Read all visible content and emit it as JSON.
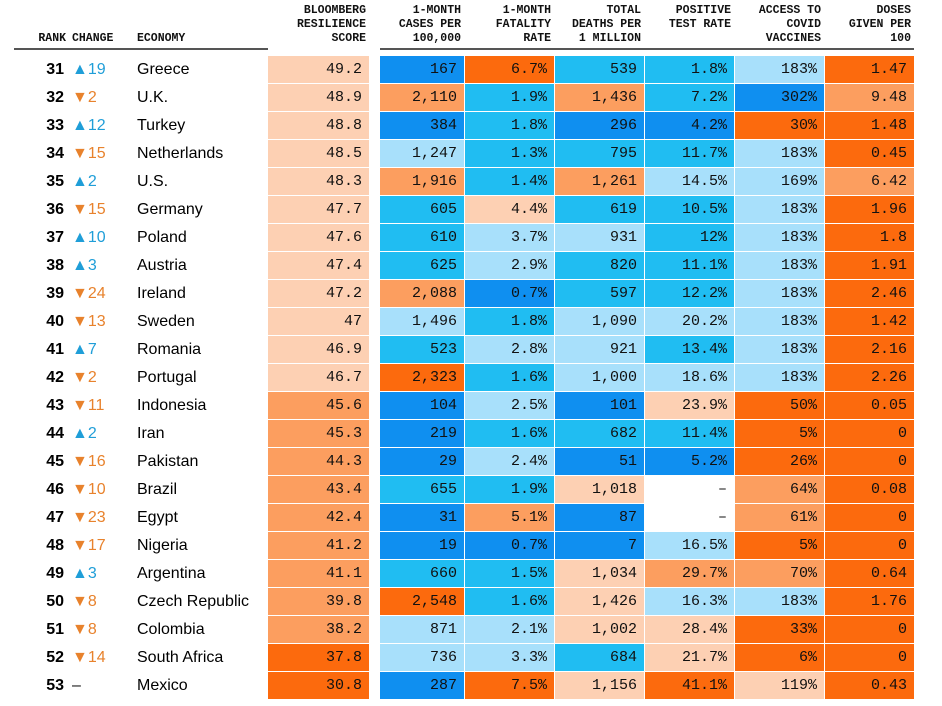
{
  "palette": {
    "o1": "#fdd0b3",
    "o2": "#fc9e5f",
    "o3": "#fc6a0d",
    "b1": "#a8e0fb",
    "b2": "#20bdf2",
    "b3": "#0f8ff0",
    "blank": "#ffffff"
  },
  "table": {
    "columns": [
      {
        "key": "rank",
        "label": "RANK"
      },
      {
        "key": "change",
        "label": "CHANGE"
      },
      {
        "key": "economy",
        "label": "ECONOMY"
      },
      {
        "key": "score",
        "label": "BLOOMBERG\nRESILIENCE\nSCORE"
      },
      {
        "key": "cases",
        "label": "1-MONTH\nCASES PER\n100,000"
      },
      {
        "key": "fatality",
        "label": "1-MONTH\nFATALITY\nRATE"
      },
      {
        "key": "deaths",
        "label": "TOTAL\nDEATHS PER\n1 MILLION"
      },
      {
        "key": "positive",
        "label": "POSITIVE\nTEST RATE"
      },
      {
        "key": "access",
        "label": "ACCESS TO\nCOVID\nVACCINES"
      },
      {
        "key": "doses",
        "label": "DOSES\nGIVEN PER\n100"
      }
    ],
    "rows": [
      {
        "rank": "31",
        "change": "▲19",
        "dir": "up",
        "economy": "Greece",
        "cells": [
          {
            "v": "49.2",
            "c": "o1"
          },
          {
            "v": "167",
            "c": "b3"
          },
          {
            "v": "6.7%",
            "c": "o3"
          },
          {
            "v": "539",
            "c": "b2"
          },
          {
            "v": "1.8%",
            "c": "b2"
          },
          {
            "v": "183%",
            "c": "b1"
          },
          {
            "v": "1.47",
            "c": "o3"
          }
        ]
      },
      {
        "rank": "32",
        "change": "▼2",
        "dir": "down",
        "economy": "U.K.",
        "cells": [
          {
            "v": "48.9",
            "c": "o1"
          },
          {
            "v": "2,110",
            "c": "o2"
          },
          {
            "v": "1.9%",
            "c": "b2"
          },
          {
            "v": "1,436",
            "c": "o2"
          },
          {
            "v": "7.2%",
            "c": "b2"
          },
          {
            "v": "302%",
            "c": "b3"
          },
          {
            "v": "9.48",
            "c": "o2"
          }
        ]
      },
      {
        "rank": "33",
        "change": "▲12",
        "dir": "up",
        "economy": "Turkey",
        "cells": [
          {
            "v": "48.8",
            "c": "o1"
          },
          {
            "v": "384",
            "c": "b3"
          },
          {
            "v": "1.8%",
            "c": "b2"
          },
          {
            "v": "296",
            "c": "b3"
          },
          {
            "v": "4.2%",
            "c": "b3"
          },
          {
            "v": "30%",
            "c": "o3"
          },
          {
            "v": "1.48",
            "c": "o3"
          }
        ]
      },
      {
        "rank": "34",
        "change": "▼15",
        "dir": "down",
        "economy": "Netherlands",
        "cells": [
          {
            "v": "48.5",
            "c": "o1"
          },
          {
            "v": "1,247",
            "c": "b1"
          },
          {
            "v": "1.3%",
            "c": "b2"
          },
          {
            "v": "795",
            "c": "b2"
          },
          {
            "v": "11.7%",
            "c": "b2"
          },
          {
            "v": "183%",
            "c": "b1"
          },
          {
            "v": "0.45",
            "c": "o3"
          }
        ]
      },
      {
        "rank": "35",
        "change": "▲2",
        "dir": "up",
        "economy": "U.S.",
        "cells": [
          {
            "v": "48.3",
            "c": "o1"
          },
          {
            "v": "1,916",
            "c": "o2"
          },
          {
            "v": "1.4%",
            "c": "b2"
          },
          {
            "v": "1,261",
            "c": "o2"
          },
          {
            "v": "14.5%",
            "c": "b1"
          },
          {
            "v": "169%",
            "c": "b1"
          },
          {
            "v": "6.42",
            "c": "o2"
          }
        ]
      },
      {
        "rank": "36",
        "change": "▼15",
        "dir": "down",
        "economy": "Germany",
        "cells": [
          {
            "v": "47.7",
            "c": "o1"
          },
          {
            "v": "605",
            "c": "b2"
          },
          {
            "v": "4.4%",
            "c": "o1"
          },
          {
            "v": "619",
            "c": "b2"
          },
          {
            "v": "10.5%",
            "c": "b2"
          },
          {
            "v": "183%",
            "c": "b1"
          },
          {
            "v": "1.96",
            "c": "o3"
          }
        ]
      },
      {
        "rank": "37",
        "change": "▲10",
        "dir": "up",
        "economy": "Poland",
        "cells": [
          {
            "v": "47.6",
            "c": "o1"
          },
          {
            "v": "610",
            "c": "b2"
          },
          {
            "v": "3.7%",
            "c": "b1"
          },
          {
            "v": "931",
            "c": "b1"
          },
          {
            "v": "12%",
            "c": "b2"
          },
          {
            "v": "183%",
            "c": "b1"
          },
          {
            "v": "1.8",
            "c": "o3"
          }
        ]
      },
      {
        "rank": "38",
        "change": "▲3",
        "dir": "up",
        "economy": "Austria",
        "cells": [
          {
            "v": "47.4",
            "c": "o1"
          },
          {
            "v": "625",
            "c": "b2"
          },
          {
            "v": "2.9%",
            "c": "b1"
          },
          {
            "v": "820",
            "c": "b2"
          },
          {
            "v": "11.1%",
            "c": "b2"
          },
          {
            "v": "183%",
            "c": "b1"
          },
          {
            "v": "1.91",
            "c": "o3"
          }
        ]
      },
      {
        "rank": "39",
        "change": "▼24",
        "dir": "down",
        "economy": "Ireland",
        "cells": [
          {
            "v": "47.2",
            "c": "o1"
          },
          {
            "v": "2,088",
            "c": "o2"
          },
          {
            "v": "0.7%",
            "c": "b3"
          },
          {
            "v": "597",
            "c": "b2"
          },
          {
            "v": "12.2%",
            "c": "b2"
          },
          {
            "v": "183%",
            "c": "b1"
          },
          {
            "v": "2.46",
            "c": "o3"
          }
        ]
      },
      {
        "rank": "40",
        "change": "▼13",
        "dir": "down",
        "economy": "Sweden",
        "cells": [
          {
            "v": "47",
            "c": "o1"
          },
          {
            "v": "1,496",
            "c": "b1"
          },
          {
            "v": "1.8%",
            "c": "b2"
          },
          {
            "v": "1,090",
            "c": "b1"
          },
          {
            "v": "20.2%",
            "c": "b1"
          },
          {
            "v": "183%",
            "c": "b1"
          },
          {
            "v": "1.42",
            "c": "o3"
          }
        ]
      },
      {
        "rank": "41",
        "change": "▲7",
        "dir": "up",
        "economy": "Romania",
        "cells": [
          {
            "v": "46.9",
            "c": "o1"
          },
          {
            "v": "523",
            "c": "b2"
          },
          {
            "v": "2.8%",
            "c": "b1"
          },
          {
            "v": "921",
            "c": "b1"
          },
          {
            "v": "13.4%",
            "c": "b2"
          },
          {
            "v": "183%",
            "c": "b1"
          },
          {
            "v": "2.16",
            "c": "o3"
          }
        ]
      },
      {
        "rank": "42",
        "change": "▼2",
        "dir": "down",
        "economy": "Portugal",
        "cells": [
          {
            "v": "46.7",
            "c": "o1"
          },
          {
            "v": "2,323",
            "c": "o3"
          },
          {
            "v": "1.6%",
            "c": "b2"
          },
          {
            "v": "1,000",
            "c": "b1"
          },
          {
            "v": "18.6%",
            "c": "b1"
          },
          {
            "v": "183%",
            "c": "b1"
          },
          {
            "v": "2.26",
            "c": "o3"
          }
        ]
      },
      {
        "rank": "43",
        "change": "▼11",
        "dir": "down",
        "economy": "Indonesia",
        "cells": [
          {
            "v": "45.6",
            "c": "o2"
          },
          {
            "v": "104",
            "c": "b3"
          },
          {
            "v": "2.5%",
            "c": "b1"
          },
          {
            "v": "101",
            "c": "b3"
          },
          {
            "v": "23.9%",
            "c": "o1"
          },
          {
            "v": "50%",
            "c": "o3"
          },
          {
            "v": "0.05",
            "c": "o3"
          }
        ]
      },
      {
        "rank": "44",
        "change": "▲2",
        "dir": "up",
        "economy": "Iran",
        "cells": [
          {
            "v": "45.3",
            "c": "o2"
          },
          {
            "v": "219",
            "c": "b3"
          },
          {
            "v": "1.6%",
            "c": "b2"
          },
          {
            "v": "682",
            "c": "b2"
          },
          {
            "v": "11.4%",
            "c": "b2"
          },
          {
            "v": "5%",
            "c": "o3"
          },
          {
            "v": "0",
            "c": "o3"
          }
        ]
      },
      {
        "rank": "45",
        "change": "▼16",
        "dir": "down",
        "economy": "Pakistan",
        "cells": [
          {
            "v": "44.3",
            "c": "o2"
          },
          {
            "v": "29",
            "c": "b3"
          },
          {
            "v": "2.4%",
            "c": "b1"
          },
          {
            "v": "51",
            "c": "b3"
          },
          {
            "v": "5.2%",
            "c": "b3"
          },
          {
            "v": "26%",
            "c": "o3"
          },
          {
            "v": "0",
            "c": "o3"
          }
        ]
      },
      {
        "rank": "46",
        "change": "▼10",
        "dir": "down",
        "economy": "Brazil",
        "cells": [
          {
            "v": "43.4",
            "c": "o2"
          },
          {
            "v": "655",
            "c": "b2"
          },
          {
            "v": "1.9%",
            "c": "b2"
          },
          {
            "v": "1,018",
            "c": "o1"
          },
          {
            "v": "–",
            "c": "blank"
          },
          {
            "v": "64%",
            "c": "o2"
          },
          {
            "v": "0.08",
            "c": "o3"
          }
        ]
      },
      {
        "rank": "47",
        "change": "▼23",
        "dir": "down",
        "economy": "Egypt",
        "cells": [
          {
            "v": "42.4",
            "c": "o2"
          },
          {
            "v": "31",
            "c": "b3"
          },
          {
            "v": "5.1%",
            "c": "o2"
          },
          {
            "v": "87",
            "c": "b3"
          },
          {
            "v": "–",
            "c": "blank"
          },
          {
            "v": "61%",
            "c": "o2"
          },
          {
            "v": "0",
            "c": "o3"
          }
        ]
      },
      {
        "rank": "48",
        "change": "▼17",
        "dir": "down",
        "economy": "Nigeria",
        "cells": [
          {
            "v": "41.2",
            "c": "o2"
          },
          {
            "v": "19",
            "c": "b3"
          },
          {
            "v": "0.7%",
            "c": "b3"
          },
          {
            "v": "7",
            "c": "b3"
          },
          {
            "v": "16.5%",
            "c": "b1"
          },
          {
            "v": "5%",
            "c": "o3"
          },
          {
            "v": "0",
            "c": "o3"
          }
        ]
      },
      {
        "rank": "49",
        "change": "▲3",
        "dir": "up",
        "economy": "Argentina",
        "cells": [
          {
            "v": "41.1",
            "c": "o2"
          },
          {
            "v": "660",
            "c": "b2"
          },
          {
            "v": "1.5%",
            "c": "b2"
          },
          {
            "v": "1,034",
            "c": "o1"
          },
          {
            "v": "29.7%",
            "c": "o2"
          },
          {
            "v": "70%",
            "c": "o2"
          },
          {
            "v": "0.64",
            "c": "o3"
          }
        ]
      },
      {
        "rank": "50",
        "change": "▼8",
        "dir": "down",
        "economy": "Czech Republic",
        "cells": [
          {
            "v": "39.8",
            "c": "o2"
          },
          {
            "v": "2,548",
            "c": "o3"
          },
          {
            "v": "1.6%",
            "c": "b2"
          },
          {
            "v": "1,426",
            "c": "o1"
          },
          {
            "v": "16.3%",
            "c": "b1"
          },
          {
            "v": "183%",
            "c": "b1"
          },
          {
            "v": "1.76",
            "c": "o3"
          }
        ]
      },
      {
        "rank": "51",
        "change": "▼8",
        "dir": "down",
        "economy": "Colombia",
        "cells": [
          {
            "v": "38.2",
            "c": "o2"
          },
          {
            "v": "871",
            "c": "b1"
          },
          {
            "v": "2.1%",
            "c": "b1"
          },
          {
            "v": "1,002",
            "c": "o1"
          },
          {
            "v": "28.4%",
            "c": "o1"
          },
          {
            "v": "33%",
            "c": "o3"
          },
          {
            "v": "0",
            "c": "o3"
          }
        ]
      },
      {
        "rank": "52",
        "change": "▼14",
        "dir": "down",
        "economy": "South Africa",
        "cells": [
          {
            "v": "37.8",
            "c": "o3"
          },
          {
            "v": "736",
            "c": "b1"
          },
          {
            "v": "3.3%",
            "c": "b1"
          },
          {
            "v": "684",
            "c": "b2"
          },
          {
            "v": "21.7%",
            "c": "o1"
          },
          {
            "v": "6%",
            "c": "o3"
          },
          {
            "v": "0",
            "c": "o3"
          }
        ]
      },
      {
        "rank": "53",
        "change": "–",
        "dir": "none",
        "economy": "Mexico",
        "cells": [
          {
            "v": "30.8",
            "c": "o3"
          },
          {
            "v": "287",
            "c": "b3"
          },
          {
            "v": "7.5%",
            "c": "o3"
          },
          {
            "v": "1,156",
            "c": "o1"
          },
          {
            "v": "41.1%",
            "c": "o3"
          },
          {
            "v": "119%",
            "c": "o1"
          },
          {
            "v": "0.43",
            "c": "o3"
          }
        ]
      }
    ]
  }
}
